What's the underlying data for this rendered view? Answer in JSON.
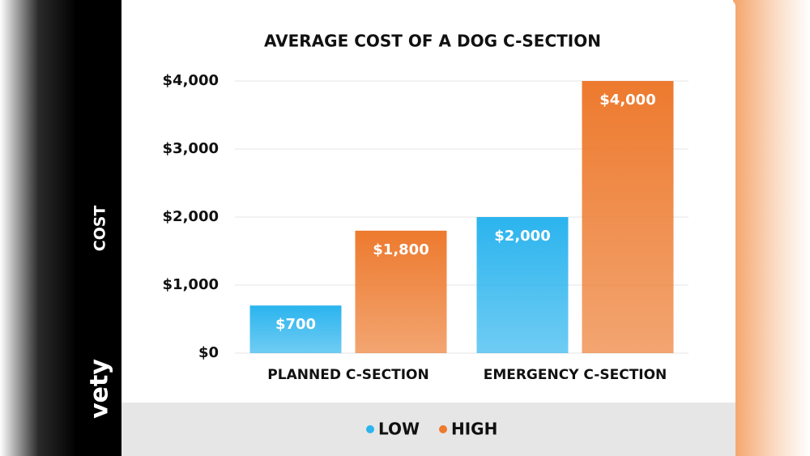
{
  "chart_data": {
    "type": "bar",
    "title": "AVERAGE COST OF A DOG C-SECTION",
    "y_label": "COST",
    "brand": "vety",
    "categories": [
      "PLANNED C-SECTION",
      "EMERGENCY C-SECTION"
    ],
    "series": [
      {
        "name": "LOW",
        "color": "#2bb4ee",
        "values": [
          700,
          2000
        ],
        "value_labels": [
          "$700",
          "$2,000"
        ]
      },
      {
        "name": "HIGH",
        "color": "#ed7a2e",
        "values": [
          1800,
          4000
        ],
        "value_labels": [
          "$1,800",
          "$4,000"
        ]
      }
    ],
    "ylim": [
      0,
      4000
    ],
    "yticks": [
      {
        "value": 0,
        "label": "$0"
      },
      {
        "value": 1000,
        "label": "$1,000"
      },
      {
        "value": 2000,
        "label": "$2,000"
      },
      {
        "value": 3000,
        "label": "$3,000"
      },
      {
        "value": 4000,
        "label": "$4,000"
      }
    ],
    "grid": true,
    "legend": "bottom"
  }
}
